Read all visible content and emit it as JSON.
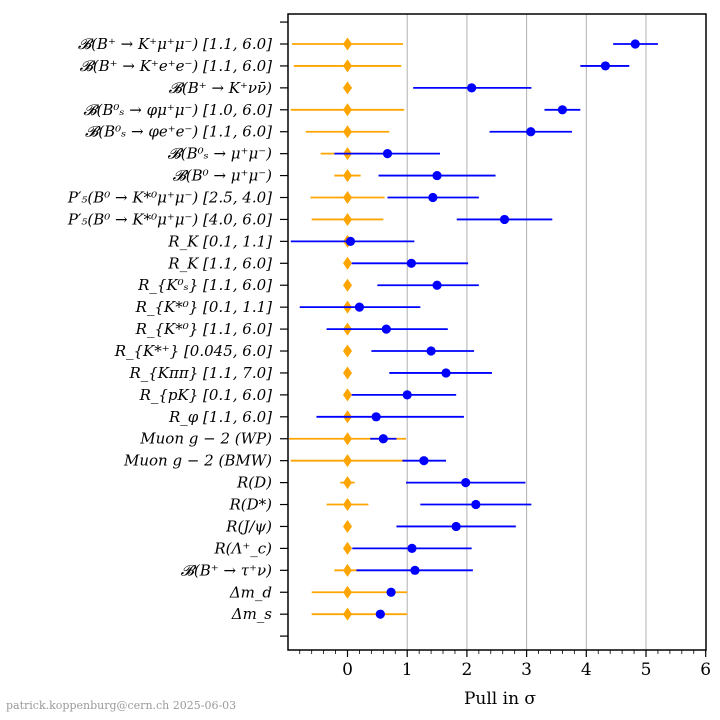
{
  "chart_data": {
    "type": "scatter",
    "xlabel": "Pull in σ",
    "xlim": [
      -1,
      6
    ],
    "xticks": [
      0,
      1,
      2,
      3,
      4,
      5,
      6
    ],
    "grid": "vertical",
    "colors": {
      "sm": "#ffa500",
      "measurement": "#0000ff",
      "grid": "#b0b0b0"
    },
    "rows": [
      {
        "label": "𝓑(B⁺ → K⁺μ⁺μ⁻) [1.1, 6.0]",
        "sm": {
          "x": 0,
          "lo": -0.93,
          "hi": 0.93
        },
        "meas": {
          "x": 4.82,
          "lo": 4.45,
          "hi": 5.2
        }
      },
      {
        "label": "𝓑(B⁺ → K⁺e⁺e⁻) [1.1, 6.0]",
        "sm": {
          "x": 0,
          "lo": -0.9,
          "hi": 0.9
        },
        "meas": {
          "x": 4.32,
          "lo": 3.9,
          "hi": 4.72
        }
      },
      {
        "label": "𝓑(B⁺ → K⁺νν̄)",
        "sm": {
          "x": 0,
          "lo": -0.07,
          "hi": 0.07
        },
        "meas": {
          "x": 2.08,
          "lo": 1.1,
          "hi": 3.08
        }
      },
      {
        "label": "𝓑(B⁰ₛ → φμ⁺μ⁻) [1.0, 6.0]",
        "sm": {
          "x": 0,
          "lo": -0.95,
          "hi": 0.95
        },
        "meas": {
          "x": 3.6,
          "lo": 3.3,
          "hi": 3.9
        }
      },
      {
        "label": "𝓑(B⁰ₛ → φe⁺e⁻) [1.1, 6.0]",
        "sm": {
          "x": 0,
          "lo": -0.7,
          "hi": 0.7
        },
        "meas": {
          "x": 3.07,
          "lo": 2.38,
          "hi": 3.76
        }
      },
      {
        "label": "𝓑(B⁰ₛ → μ⁺μ⁻)",
        "sm": {
          "x": 0,
          "lo": -0.45,
          "hi": 0.45
        },
        "meas": {
          "x": 0.67,
          "lo": -0.22,
          "hi": 1.55
        }
      },
      {
        "label": "𝓑(B⁰ → μ⁺μ⁻)",
        "sm": {
          "x": 0,
          "lo": -0.22,
          "hi": 0.22
        },
        "meas": {
          "x": 1.5,
          "lo": 0.52,
          "hi": 2.48
        }
      },
      {
        "label": "P′₅(B⁰ → K*⁰μ⁺μ⁻) [2.5, 4.0]",
        "sm": {
          "x": 0,
          "lo": -0.62,
          "hi": 0.62
        },
        "meas": {
          "x": 1.43,
          "lo": 0.67,
          "hi": 2.2
        }
      },
      {
        "label": "P′₅(B⁰ → K*⁰μ⁺μ⁻) [4.0, 6.0]",
        "sm": {
          "x": 0,
          "lo": -0.6,
          "hi": 0.6
        },
        "meas": {
          "x": 2.63,
          "lo": 1.83,
          "hi": 3.43
        }
      },
      {
        "label": "R_K [0.1, 1.1]",
        "sm": {
          "x": 0,
          "lo": -0.04,
          "hi": 0.04
        },
        "meas": {
          "x": 0.05,
          "lo": -0.95,
          "hi": 1.12
        }
      },
      {
        "label": "R_K [1.1, 6.0]",
        "sm": {
          "x": 0,
          "lo": -0.04,
          "hi": 0.04
        },
        "meas": {
          "x": 1.07,
          "lo": 0.07,
          "hi": 2.02
        }
      },
      {
        "label": "R_{K⁰ₛ} [1.1, 6.0]",
        "sm": {
          "x": 0,
          "lo": -0.04,
          "hi": 0.04
        },
        "meas": {
          "x": 1.5,
          "lo": 0.5,
          "hi": 2.2
        }
      },
      {
        "label": "R_{K*⁰} [0.1, 1.1]",
        "sm": {
          "x": 0,
          "lo": -0.04,
          "hi": 0.04
        },
        "meas": {
          "x": 0.2,
          "lo": -0.8,
          "hi": 1.22
        }
      },
      {
        "label": "R_{K*⁰} [1.1, 6.0]",
        "sm": {
          "x": 0,
          "lo": -0.04,
          "hi": 0.04
        },
        "meas": {
          "x": 0.65,
          "lo": -0.35,
          "hi": 1.68
        }
      },
      {
        "label": "R_{K*⁺} [0.045, 6.0]",
        "sm": {
          "x": 0,
          "lo": -0.04,
          "hi": 0.04
        },
        "meas": {
          "x": 1.4,
          "lo": 0.4,
          "hi": 2.12
        }
      },
      {
        "label": "R_{Kππ} [1.1, 7.0]",
        "sm": {
          "x": 0,
          "lo": -0.04,
          "hi": 0.04
        },
        "meas": {
          "x": 1.65,
          "lo": 0.7,
          "hi": 2.42
        }
      },
      {
        "label": "R_{pK} [0.1, 6.0]",
        "sm": {
          "x": 0,
          "lo": -0.04,
          "hi": 0.04
        },
        "meas": {
          "x": 1.0,
          "lo": 0.07,
          "hi": 1.82
        }
      },
      {
        "label": "R_φ [1.1, 6.0]",
        "sm": {
          "x": 0,
          "lo": -0.04,
          "hi": 0.04
        },
        "meas": {
          "x": 0.48,
          "lo": -0.52,
          "hi": 1.95
        }
      },
      {
        "label": "Muon g − 2 (WP)",
        "sm": {
          "x": 0,
          "lo": -0.98,
          "hi": 0.98
        },
        "meas": {
          "x": 0.6,
          "lo": 0.38,
          "hi": 0.82
        }
      },
      {
        "label": "Muon g − 2 (BMW)",
        "sm": {
          "x": 0,
          "lo": -0.95,
          "hi": 0.95
        },
        "meas": {
          "x": 1.28,
          "lo": 0.92,
          "hi": 1.65
        }
      },
      {
        "label": "R(D)",
        "sm": {
          "x": 0,
          "lo": -0.12,
          "hi": 0.12
        },
        "meas": {
          "x": 1.98,
          "lo": 0.98,
          "hi": 2.98
        }
      },
      {
        "label": "R(D*)",
        "sm": {
          "x": 0,
          "lo": -0.35,
          "hi": 0.35
        },
        "meas": {
          "x": 2.15,
          "lo": 1.22,
          "hi": 3.08
        }
      },
      {
        "label": "R(J/ψ)",
        "sm": {
          "x": 0,
          "lo": -0.05,
          "hi": 0.05
        },
        "meas": {
          "x": 1.82,
          "lo": 0.82,
          "hi": 2.82
        }
      },
      {
        "label": "R(Λ⁺_c)",
        "sm": {
          "x": 0,
          "lo": -0.05,
          "hi": 0.05
        },
        "meas": {
          "x": 1.08,
          "lo": 0.08,
          "hi": 2.08
        }
      },
      {
        "label": "𝓑(B⁺ → τ⁺ν)",
        "sm": {
          "x": 0,
          "lo": -0.22,
          "hi": 0.22
        },
        "meas": {
          "x": 1.13,
          "lo": 0.15,
          "hi": 2.1
        }
      },
      {
        "label": "Δm_d",
        "sm": {
          "x": 0,
          "lo": -0.6,
          "hi": 1.0
        },
        "meas": {
          "x": 0.73,
          "lo": 0.73,
          "hi": 0.73
        }
      },
      {
        "label": "Δm_s",
        "sm": {
          "x": 0,
          "lo": -0.6,
          "hi": 1.0
        },
        "meas": {
          "x": 0.55,
          "lo": 0.55,
          "hi": 0.55
        }
      }
    ]
  },
  "credit": "patrick.koppenburg@cern.ch 2025-06-03"
}
